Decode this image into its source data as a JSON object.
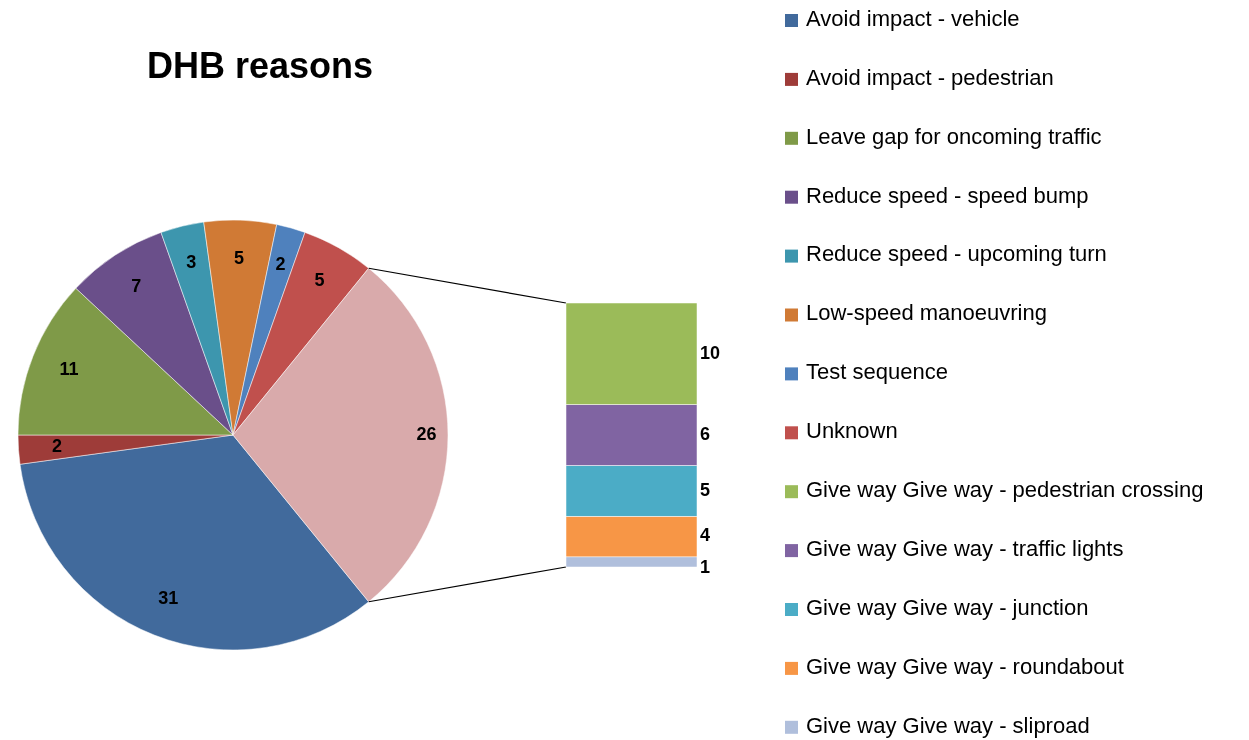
{
  "chart_data": [
    {
      "type": "pie",
      "title": "DHB reasons",
      "categories": [
        "Avoid impact - vehicle",
        "Avoid impact - pedestrian",
        "Leave gap for oncoming traffic",
        "Reduce speed - speed bump",
        "Reduce speed - upcoming turn",
        "Low-speed manoeuvring",
        "Test sequence",
        "Unknown",
        null
      ],
      "values": [
        31,
        2,
        11,
        7,
        3,
        5,
        2,
        5,
        26
      ],
      "colors": [
        "#416a9c",
        "#9e3c39",
        "#7f9a48",
        "#6a4f8a",
        "#3d96ae",
        "#d07a35",
        "#4f81bd",
        "#c0504d",
        "#d9aaab"
      ],
      "data_labels": true,
      "legend": "right"
    },
    {
      "type": "bar",
      "stacked": true,
      "categories": [
        null
      ],
      "data_labels": true,
      "legend": "right",
      "series": [
        {
          "name": "Give way Give way - sliproad",
          "color": "#b0bfdc",
          "values": [
            1
          ]
        },
        {
          "name": "Give way Give way - roundabout",
          "color": "#f79646",
          "values": [
            4
          ]
        },
        {
          "name": "Give way Give way - junction",
          "color": "#4bacc6",
          "values": [
            5
          ]
        },
        {
          "name": "Give way Give way - traffic lights",
          "color": "#8064a2",
          "values": [
            6
          ]
        },
        {
          "name": "Give way Give way - pedestrian crossing",
          "color": "#9bbb59",
          "values": [
            10
          ]
        }
      ]
    }
  ]
}
